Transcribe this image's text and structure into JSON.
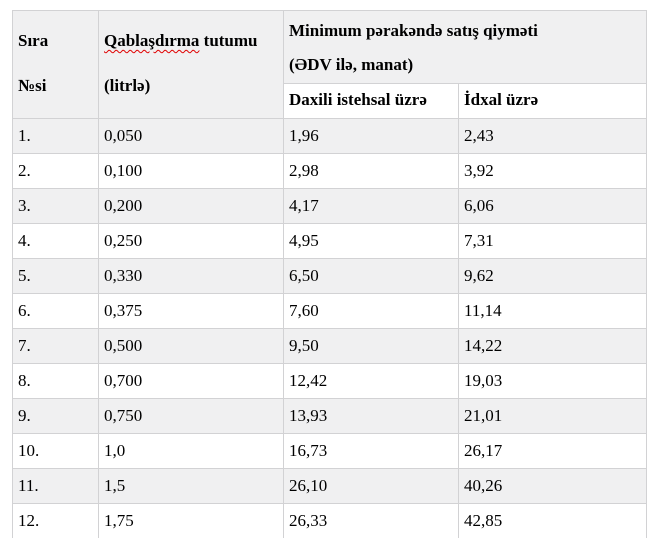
{
  "colors": {
    "header_shade": "#f0f0f1",
    "row_stripe": "#f0f0f1",
    "border": "#d2d2d4",
    "text": "#000000",
    "spellcheck_underline": "#e00000"
  },
  "table": {
    "header": {
      "col1_line1": "Sıra",
      "col1_line2": "№si",
      "col2_word_misspelled": "Qablaşdırma",
      "col2_word_rest": "tutumu",
      "col2_line2": "(litrlə)",
      "group_line1": "Minimum pərakəndə satış qiyməti",
      "group_line2": "(ƏDV ilə, manat)",
      "sub_domestic": "Daxili istehsal üzrə",
      "sub_import": "İdxal üzrə"
    },
    "rows": [
      {
        "no": "1.",
        "capacity": "0,050",
        "domestic": "1,96",
        "import": "2,43"
      },
      {
        "no": "2.",
        "capacity": "0,100",
        "domestic": "2,98",
        "import": "3,92"
      },
      {
        "no": "3.",
        "capacity": "0,200",
        "domestic": "4,17",
        "import": "6,06"
      },
      {
        "no": "4.",
        "capacity": "0,250",
        "domestic": "4,95",
        "import": "7,31"
      },
      {
        "no": "5.",
        "capacity": "0,330",
        "domestic": "6,50",
        "import": "9,62"
      },
      {
        "no": "6.",
        "capacity": "0,375",
        "domestic": "7,60",
        "import": "11,14"
      },
      {
        "no": "7.",
        "capacity": "0,500",
        "domestic": "9,50",
        "import": "14,22"
      },
      {
        "no": "8.",
        "capacity": "0,700",
        "domestic": "12,42",
        "import": "19,03"
      },
      {
        "no": "9.",
        "capacity": "0,750",
        "domestic": "13,93",
        "import": "21,01"
      },
      {
        "no": "10.",
        "capacity": "1,0",
        "domestic": "16,73",
        "import": "26,17"
      },
      {
        "no": "11.",
        "capacity": "1,5",
        "domestic": "26,10",
        "import": "40,26"
      },
      {
        "no": "12.",
        "capacity": "1,75",
        "domestic": "26,33",
        "import": "42,85"
      }
    ]
  }
}
